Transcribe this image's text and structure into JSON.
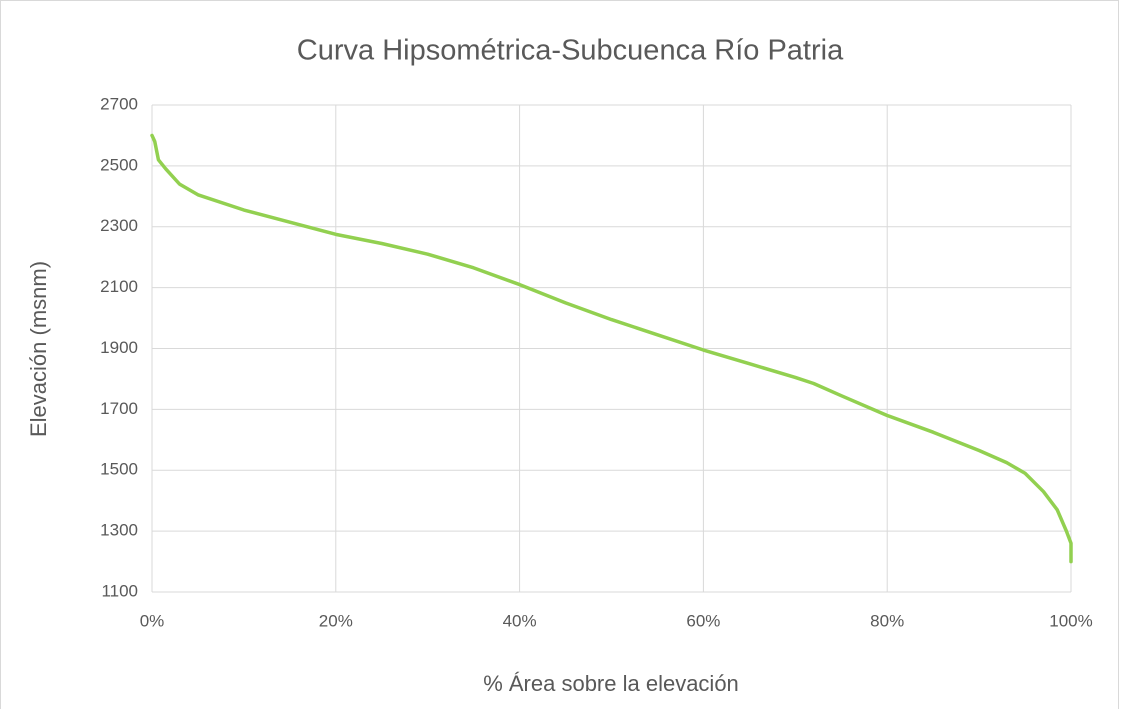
{
  "chart_data": {
    "type": "line",
    "title": "Curva Hipsométrica-Subcuenca Río Patria",
    "x_label": "% Área sobre la elevación",
    "y_label": "Elevación  (msnm)",
    "xlim": [
      0,
      100
    ],
    "xticks": [
      {
        "value": 0,
        "label": "0%"
      },
      {
        "value": 20,
        "label": "20%"
      },
      {
        "value": 40,
        "label": "40%"
      },
      {
        "value": 60,
        "label": "60%"
      },
      {
        "value": 80,
        "label": "80%"
      },
      {
        "value": 100,
        "label": "100%"
      }
    ],
    "ylim": [
      1100,
      2700
    ],
    "yticks": [
      1100,
      1300,
      1500,
      1700,
      1900,
      2100,
      2300,
      2500,
      2700
    ],
    "grid": true,
    "series": [
      {
        "color": "#92d050",
        "x": [
          0,
          0.3,
          0.7,
          1.5,
          3,
          5,
          10,
          15,
          20,
          25,
          30,
          35,
          40,
          45,
          50,
          55,
          60,
          65,
          70,
          72,
          75,
          80,
          85,
          90,
          93,
          95,
          97,
          98.5,
          99.5,
          100,
          100
        ],
        "values": [
          2600,
          2580,
          2520,
          2490,
          2440,
          2405,
          2355,
          2315,
          2275,
          2245,
          2210,
          2165,
          2110,
          2050,
          1995,
          1945,
          1895,
          1850,
          1805,
          1785,
          1745,
          1680,
          1625,
          1565,
          1525,
          1490,
          1430,
          1370,
          1300,
          1260,
          1200
        ]
      }
    ]
  }
}
